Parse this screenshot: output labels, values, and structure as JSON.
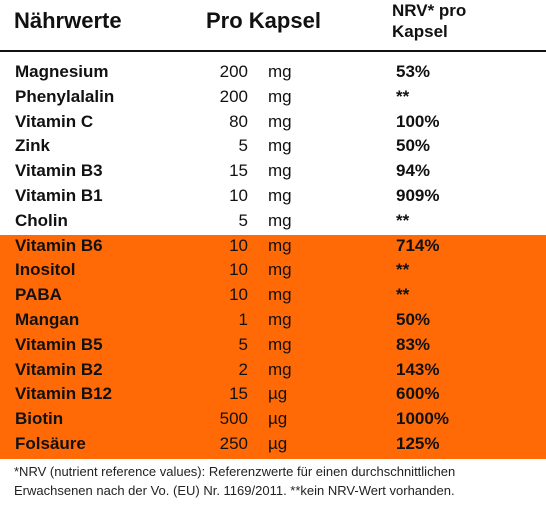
{
  "header": {
    "name": "Nährwerte",
    "amount": "Pro Kapsel",
    "nrv_line1": "NRV* pro",
    "nrv_line2": "Kapsel"
  },
  "rows": [
    {
      "name": "Magnesium",
      "amount": "200",
      "unit": "mg",
      "nrv": "53%"
    },
    {
      "name": "Phenylalalin",
      "amount": "200",
      "unit": "mg",
      "nrv": "**"
    },
    {
      "name": "Vitamin C",
      "amount": "80",
      "unit": "mg",
      "nrv": "100%"
    },
    {
      "name": "Zink",
      "amount": "5",
      "unit": "mg",
      "nrv": "50%"
    },
    {
      "name": "Vitamin B3",
      "amount": "15",
      "unit": "mg",
      "nrv": "94%"
    },
    {
      "name": "Vitamin B1",
      "amount": "10",
      "unit": "mg",
      "nrv": "909%"
    },
    {
      "name": "Cholin",
      "amount": "5",
      "unit": "mg",
      "nrv": "**"
    },
    {
      "name": "Vitamin B6",
      "amount": "10",
      "unit": "mg",
      "nrv": "714%"
    },
    {
      "name": "Inositol",
      "amount": "10",
      "unit": "mg",
      "nrv": "**"
    },
    {
      "name": "PABA",
      "amount": "10",
      "unit": "mg",
      "nrv": "**"
    },
    {
      "name": "Mangan",
      "amount": "1",
      "unit": "mg",
      "nrv": "50%"
    },
    {
      "name": "Vitamin B5",
      "amount": "5",
      "unit": "mg",
      "nrv": "83%"
    },
    {
      "name": "Vitamin B2",
      "amount": "2",
      "unit": "mg",
      "nrv": "143%"
    },
    {
      "name": "Vitamin B12",
      "amount": "15",
      "unit": "µg",
      "nrv": "600%"
    },
    {
      "name": "Biotin",
      "amount": "500",
      "unit": "µg",
      "nrv": "1000%"
    },
    {
      "name": "Folsäure",
      "amount": "250",
      "unit": "µg",
      "nrv": "125%"
    }
  ],
  "footnote": {
    "line1": "*NRV (nutrient reference values): Referenzwerte für einen durchschnittlichen",
    "line2": "Erwachsenen nach der Vo. (EU) Nr. 1169/2011. **kein NRV-Wert vorhanden."
  },
  "colors": {
    "highlight": "#ff6a06",
    "text": "#111111"
  }
}
